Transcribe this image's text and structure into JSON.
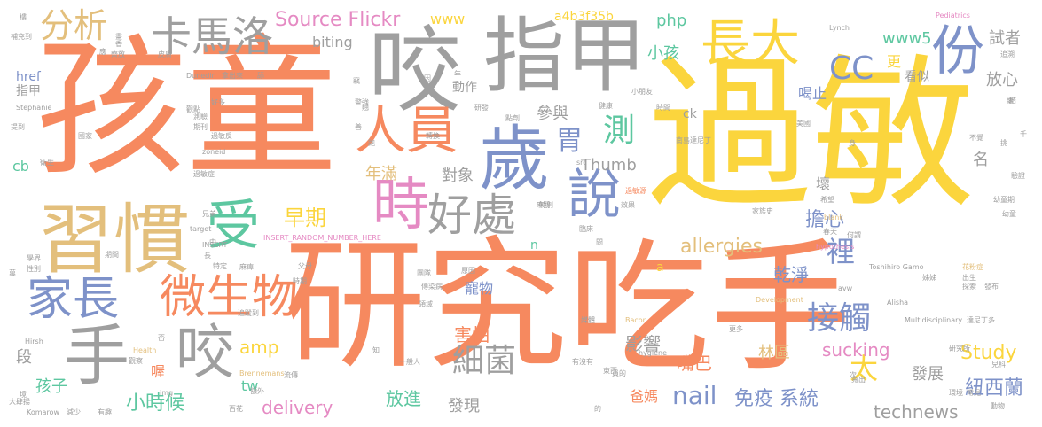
{
  "words": {
    "w1": "孩童",
    "w2": "過敏",
    "w3": "研究",
    "w4": "吃手",
    "w5": "指甲",
    "w6": "咬",
    "w7": "習慣",
    "w8": "歲",
    "w9": "長大",
    "w10": "份",
    "w11": "人員",
    "w12": "時",
    "w13": "受",
    "w14": "好處",
    "w15": "說",
    "w16": "微生物",
    "w17": "家長",
    "w18": "手",
    "w19": "咬",
    "w20": "卡馬洛",
    "w21": "分析",
    "w22": "Source Flickr",
    "w23": "CC",
    "w24": "早期",
    "w25": "胃",
    "w26": "測",
    "w27": "接觸",
    "w28": "細菌",
    "w29": "nail",
    "w30": "太",
    "w31": "裡",
    "w32": "擔心",
    "w33": "免疫 系統",
    "w34": "allergies",
    "w35": "乾淨",
    "w36": "寵物",
    "w37": "sucking",
    "w38": "Study",
    "w39": "小時候",
    "w40": "delivery",
    "w41": "technews",
    "w42": "紐西蘭",
    "w43": "發展",
    "w44": "影響",
    "w45": "嘴巴",
    "w46": "害怕",
    "w47": "amp",
    "w48": "孩子",
    "w49": "放進",
    "w50": "發現",
    "w51": "爸媽",
    "w52": "林區",
    "w53": "Thumb",
    "w54": "對象",
    "w55": "年滿",
    "w56": "參與",
    "w57": "小孩",
    "w58": "php",
    "w59": "www5",
    "w60": "試者",
    "w61": "放心",
    "w62": "更",
    "w63": "看似",
    "w64": "喝止",
    "w65": "名",
    "w66": "壞",
    "w67": "biting",
    "w68": "www",
    "w69": "a4b3f35b",
    "w70": "cb",
    "w71": "href",
    "w72": "指甲",
    "w73": "動作",
    "w74": "段",
    "w75": "tw",
    "w76": "ck",
    "w77": "hypothesis",
    "w78": "Multidisciplinary",
    "w79": "INSERT_RANDOM_NUMBER_HERE",
    "w80": "Development",
    "w81": "Lynch",
    "w82": "Pediatrics",
    "w83": "Dunedin",
    "w84": "Toshihiro Gamo",
    "w85": "Alisha",
    "w86": "hygiene",
    "w87": "Bacon",
    "w88": "Brennemans",
    "w89": "Komarow",
    "w90": "Hirsh",
    "w91": "Health",
    "w92": "Stephanie",
    "w93": "zoneid",
    "w94": "_blank",
    "w95": "target",
    "w96": "INSERT",
    "w97": "src",
    "w98": "img",
    "w99": "avw",
    "w100": "n",
    "w101": "a",
    "w102": "家族史",
    "w103": "南島達尼丁",
    "w104": "達尼丁多",
    "w105": "研究所",
    "w106": "過敏源",
    "w107": "過敏症",
    "w108": "花粉症",
    "w109": "幼童期",
    "w110": "傳染病",
    "w111": "一般人",
    "w112": "有沒有",
    "w113": "小朋友",
    "w114": "拿出來",
    "w115": "舔",
    "w116": "樓",
    "w117": "補充到",
    "w118": "齊放",
    "w119": "皮膚",
    "w120": "期刊",
    "w121": "測驗",
    "w122": "國家",
    "w123": "衛生",
    "w124": "提到",
    "w125": "學界",
    "w126": "性別",
    "w127": "期間",
    "w128": "兄弟",
    "w129": "特定",
    "w130": "父母",
    "w131": "時期",
    "w132": "追蹤到",
    "w133": "減少",
    "w134": "有趣",
    "w135": "百花",
    "w136": "額外",
    "w137": "流傳",
    "w138": "觀察",
    "w139": "團隊",
    "w140": "原因",
    "w141": "媒體",
    "w142": "領域",
    "w143": "東西",
    "w144": "翹",
    "w145": "健康",
    "w146": "時間",
    "w147": "點劑",
    "w148": "美國",
    "w149": "希望",
    "w150": "驗證",
    "w151": "幼童",
    "w152": "春天",
    "w153": "何謂",
    "w154": "動物",
    "w155": "兒科",
    "w156": "常見",
    "w157": "環境",
    "w158": "發布",
    "w159": "探索",
    "w160": "出生",
    "w161": "姊姊",
    "w162": "挑",
    "w163": "不覺",
    "w164": "結",
    "w165": "追溯",
    "w166": "千",
    "w167": "更多",
    "w168": "寬出",
    "w169": "大肆揚",
    "w170": "臨床",
    "w171": "效果",
    "w172": "麻醉",
    "w173": "特別",
    "w174": "好多",
    "w175": "警強",
    "w176": "麻痺",
    "w177": "轉換",
    "w178": "研發",
    "w179": "問",
    "w180": "畫",
    "w181": "竊",
    "w182": "因",
    "w183": "知",
    "w184": "次",
    "w185": "身",
    "w186": "否",
    "w187": "年",
    "w188": "中",
    "w189": "長",
    "w190": "善",
    "w191": "跑",
    "w192": "香",
    "w193": "萬",
    "w194": "員的",
    "w195": "雖",
    "w196": "喔",
    "w197": "境",
    "w198": "的",
    "w199": "過敏反",
    "w200": "觀點",
    "w201": "應"
  }
}
